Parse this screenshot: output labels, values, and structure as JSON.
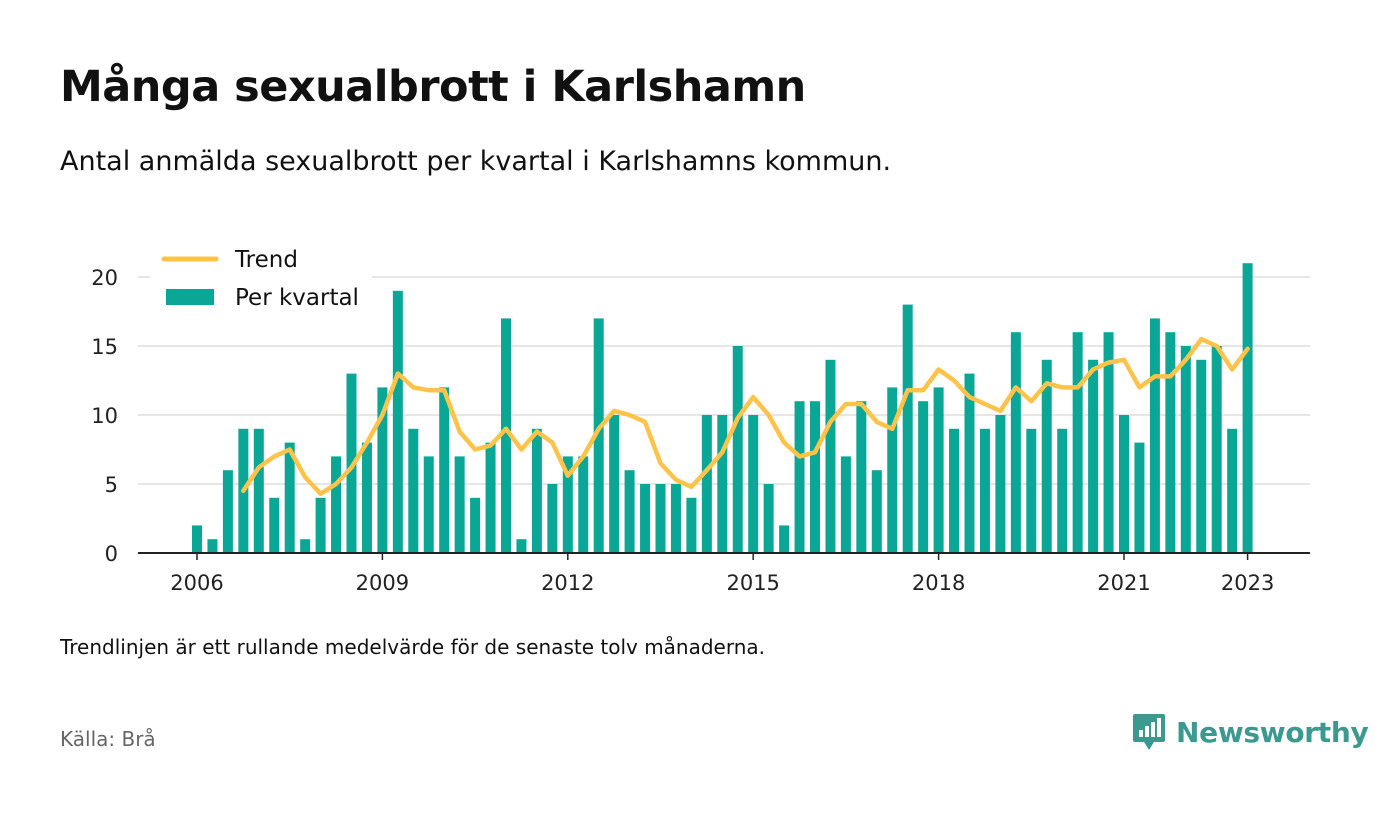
{
  "title": "Många sexualbrott i Karlshamn",
  "subtitle": "Antal anmälda sexualbrott per kvartal i Karlshamns kommun.",
  "note": "Trendlinjen är ett rullande medelvärde för de senaste tolv månaderna.",
  "source": "Källa: Brå",
  "brand": "Newsworthy",
  "colors": {
    "bar": "#0aa696",
    "trend": "#ffc34a",
    "brand": "#3b9990",
    "grid": "#dddddd",
    "axis": "#222222"
  },
  "chart_data": {
    "type": "bar",
    "x_start": "2006-Q1",
    "ylim": [
      0,
      21
    ],
    "y_ticks": [
      0,
      5,
      10,
      15,
      20
    ],
    "x_ticks": [
      "2006",
      "2009",
      "2012",
      "2015",
      "2018",
      "2021",
      "2023"
    ],
    "legend": {
      "placement": "top-left",
      "items": [
        "Trend",
        "Per kvartal"
      ]
    },
    "grid": true,
    "series": [
      {
        "name": "Per kvartal",
        "type": "bar",
        "values": [
          2,
          1,
          6,
          9,
          9,
          4,
          8,
          1,
          4,
          7,
          13,
          8,
          12,
          19,
          9,
          7,
          12,
          7,
          4,
          8,
          17,
          1,
          9,
          5,
          7,
          7,
          17,
          10,
          6,
          5,
          5,
          5,
          4,
          10,
          10,
          15,
          10,
          5,
          2,
          11,
          11,
          14,
          7,
          11,
          6,
          12,
          18,
          11,
          12,
          9,
          13,
          9,
          10,
          16,
          9,
          14,
          9,
          16,
          14,
          16,
          10,
          8,
          17,
          16,
          15,
          14,
          15,
          9,
          21
        ]
      },
      {
        "name": "Trend",
        "type": "line",
        "values": [
          null,
          null,
          null,
          4.5,
          6.2,
          7.0,
          7.5,
          5.5,
          4.3,
          5.0,
          6.2,
          8.0,
          10.0,
          13.0,
          12.0,
          11.8,
          11.8,
          8.8,
          7.5,
          7.8,
          9.0,
          7.5,
          8.8,
          8.0,
          5.6,
          7.0,
          9.0,
          10.3,
          10.0,
          9.5,
          6.5,
          5.3,
          4.8,
          6.0,
          7.3,
          9.8,
          11.3,
          10.0,
          8.0,
          7.0,
          7.3,
          9.5,
          10.8,
          10.8,
          9.5,
          9.0,
          11.8,
          11.8,
          13.3,
          12.5,
          11.3,
          10.8,
          10.3,
          12.0,
          11.0,
          12.3,
          12.0,
          12.0,
          13.3,
          13.8,
          14.0,
          12.0,
          12.8,
          12.8,
          14.0,
          15.5,
          15.0,
          13.3,
          14.8
        ]
      }
    ]
  }
}
